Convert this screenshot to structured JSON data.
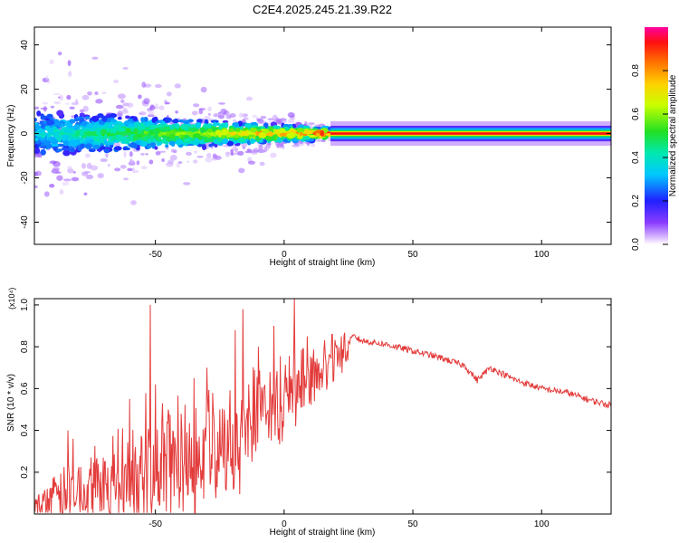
{
  "title": "C2E4.2025.245.21.39.R22",
  "colors": {
    "trace": "#e33b3b",
    "axis": "#000000"
  },
  "chart_data": [
    {
      "type": "heatmap",
      "xlabel": "Height of straight line (km)",
      "ylabel": "Frequency (Hz)",
      "xlim": [
        -97,
        127
      ],
      "ylim": [
        -50,
        48
      ],
      "xticks": [
        -50,
        0,
        50,
        100
      ],
      "yticks": [
        -40,
        -20,
        0,
        20,
        40
      ],
      "colorbar": {
        "label": "Normalized spectral amplitude",
        "range": [
          0,
          1
        ],
        "ticks": [
          0.0,
          0.2,
          0.4,
          0.6,
          0.8
        ],
        "tick_labels": [
          "0.0",
          "0.2",
          "0.4",
          "0.6",
          "0.8"
        ]
      },
      "ridge": {
        "stable_from_x": 18,
        "stable_frequency": 0,
        "stable_amplitude": 1.0,
        "noisy_region_x": [
          -97,
          18
        ],
        "noisy_frequency_spread": [
          -12,
          10
        ]
      }
    },
    {
      "type": "line",
      "xlabel": "Height of straight line (km)",
      "ylabel": "SNR (10 * v/v)",
      "multiplier": "(x10⁴)",
      "xlim": [
        -97,
        127
      ],
      "ylim": [
        0,
        1.03
      ],
      "xticks": [
        -50,
        0,
        50,
        100
      ],
      "yticks": [
        0.2,
        0.4,
        0.6,
        0.8,
        1.0
      ],
      "series": [
        {
          "name": "SNR",
          "x": [
            -97,
            -90,
            -80,
            -70,
            -60,
            -50,
            -40,
            -30,
            -20,
            -10,
            0,
            10,
            20,
            25,
            27,
            30,
            40,
            50,
            60,
            70,
            75,
            80,
            90,
            100,
            110,
            120,
            127
          ],
          "values": [
            0.02,
            0.07,
            0.12,
            0.15,
            0.18,
            0.22,
            0.26,
            0.3,
            0.36,
            0.45,
            0.55,
            0.65,
            0.75,
            0.82,
            0.85,
            0.83,
            0.81,
            0.78,
            0.75,
            0.71,
            0.64,
            0.7,
            0.64,
            0.6,
            0.58,
            0.54,
            0.52
          ]
        }
      ],
      "spikes": [
        {
          "x": -84,
          "value": 0.4
        },
        {
          "x": -75,
          "value": 0.27
        },
        {
          "x": -60,
          "value": 0.55
        },
        {
          "x": -52,
          "value": 1.0
        },
        {
          "x": -50,
          "value": 0.62
        },
        {
          "x": -45,
          "value": 0.5
        },
        {
          "x": -40,
          "value": 0.48
        },
        {
          "x": -35,
          "value": 0.65
        },
        {
          "x": -30,
          "value": 0.7
        },
        {
          "x": -25,
          "value": 0.5
        },
        {
          "x": -19,
          "value": 0.88
        },
        {
          "x": -16,
          "value": 0.98
        },
        {
          "x": -10,
          "value": 0.8
        },
        {
          "x": -4,
          "value": 0.9
        },
        {
          "x": 4,
          "value": 1.03
        },
        {
          "x": 9,
          "value": 0.85
        }
      ]
    }
  ]
}
